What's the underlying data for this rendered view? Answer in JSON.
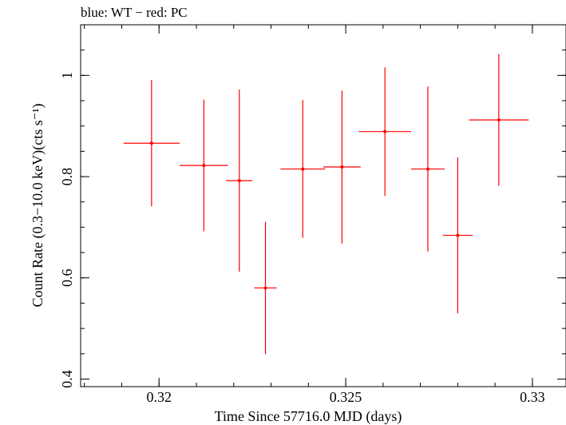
{
  "chart_data": {
    "type": "scatter",
    "title": "blue: WT − red: PC",
    "xlabel": "Time Since 57716.0 MJD (days)",
    "ylabel": "Count Rate (0.3−10.0 keV)(cts s⁻¹)",
    "xlim": [
      0.3179,
      0.3309
    ],
    "ylim": [
      0.385,
      1.1
    ],
    "x_ticks": [
      0.32,
      0.325,
      0.33
    ],
    "x_tick_labels": [
      "0.32",
      "0.325",
      "0.33"
    ],
    "y_ticks": [
      0.4,
      0.6,
      0.8,
      1.0
    ],
    "y_tick_labels": [
      "0.4",
      "0.6",
      "0.8",
      "1"
    ],
    "series": [
      {
        "name": "PC",
        "color": "#ff0000",
        "points": [
          {
            "x": 0.3198,
            "xerr": 0.00075,
            "y": 0.866,
            "yerr": 0.125
          },
          {
            "x": 0.3212,
            "xerr": 0.00065,
            "y": 0.822,
            "yerr": 0.13
          },
          {
            "x": 0.32215,
            "xerr": 0.00035,
            "y": 0.792,
            "yerr": 0.18
          },
          {
            "x": 0.32285,
            "xerr": 0.0003,
            "y": 0.58,
            "yerr": 0.131
          },
          {
            "x": 0.32385,
            "xerr": 0.0006,
            "y": 0.815,
            "yerr": 0.136
          },
          {
            "x": 0.3249,
            "xerr": 0.0005,
            "y": 0.819,
            "yerr": 0.151
          },
          {
            "x": 0.32605,
            "xerr": 0.0007,
            "y": 0.889,
            "yerr": 0.127
          },
          {
            "x": 0.3272,
            "xerr": 0.00045,
            "y": 0.815,
            "yerr": 0.163
          },
          {
            "x": 0.328,
            "xerr": 0.0004,
            "y": 0.684,
            "yerr": 0.154
          },
          {
            "x": 0.3291,
            "xerr": 0.0008,
            "y": 0.912,
            "yerr": 0.13
          }
        ]
      }
    ]
  }
}
